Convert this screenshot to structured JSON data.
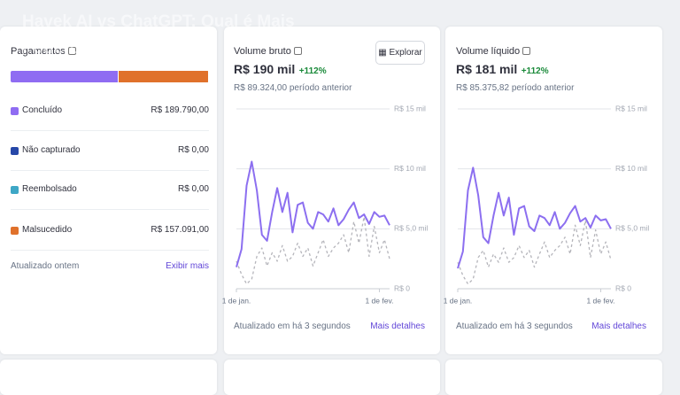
{
  "overlay_title": "Havek AI vs ChatGPT: Qual é Mais Poderoso?",
  "payments": {
    "title": "Pagamentos",
    "labels": [
      "Concluído",
      "Não capturado",
      "Reembolsado",
      "Malsucedido"
    ],
    "colors": [
      "#8f6cf2",
      "#2748a8",
      "#3ea7c6",
      "#e0712b"
    ],
    "values": [
      189790,
      0,
      0,
      157091
    ],
    "value_labels": [
      "R$ 189.790,00",
      "R$ 0,00",
      "R$ 0,00",
      "R$ 157.091,00"
    ],
    "updated": "Atualizado ontem",
    "link": "Exibir mais"
  },
  "chart_data": [
    {
      "type": "line",
      "title": "Volume bruto",
      "total": "R$ 190 mil",
      "change": "+112%",
      "previous": "R$ 89.324,00 período anterior",
      "button": "Explorar",
      "footer": "Atualizado em há 3 segundos",
      "link": "Mais detalhes",
      "categories": [
        "1 de jan.",
        null,
        null,
        null,
        null,
        null,
        null,
        null,
        null,
        null,
        null,
        null,
        null,
        null,
        null,
        null,
        null,
        null,
        null,
        null,
        null,
        null,
        null,
        null,
        null,
        null,
        null,
        null,
        "1 de fev.",
        null,
        null
      ],
      "series": [
        {
          "color": "#8c6ff0",
          "values": [
            1800,
            3300,
            8600,
            10600,
            8200,
            4500,
            4000,
            6400,
            8400,
            6400,
            8000,
            4700,
            7000,
            7200,
            5500,
            5000,
            6400,
            6200,
            5600,
            6700,
            5300,
            5800,
            6600,
            7200,
            5900,
            6200,
            5400,
            6400,
            6000,
            6100,
            5300
          ]
        },
        {
          "color": "#b5b5bb",
          "dashed": true,
          "values": [
            2300,
            1200,
            400,
            800,
            2700,
            3400,
            1900,
            3000,
            2300,
            3600,
            2300,
            2700,
            3800,
            2700,
            3400,
            1900,
            3000,
            4100,
            2700,
            3400,
            3800,
            4500,
            3000,
            5600,
            3800,
            6000,
            2700,
            5200,
            3000,
            4100,
            2500
          ]
        }
      ],
      "ylim": [
        0,
        15000
      ],
      "yticks": [
        {
          "value": 0,
          "label": "R$ 0"
        },
        {
          "value": 5000,
          "label": "R$ 5,0 mil"
        },
        {
          "value": 10000,
          "label": "R$ 10 mil"
        },
        {
          "value": 15000,
          "label": "R$ 15 mil"
        }
      ],
      "grid": true
    },
    {
      "type": "line",
      "title": "Volume líquido",
      "total": "R$ 181 mil",
      "change": "+112%",
      "previous": "R$ 85.375,82 período anterior",
      "footer": "Atualizado em há 3 segundos",
      "link": "Mais detalhes",
      "categories": [
        "1 de jan.",
        null,
        null,
        null,
        null,
        null,
        null,
        null,
        null,
        null,
        null,
        null,
        null,
        null,
        null,
        null,
        null,
        null,
        null,
        null,
        null,
        null,
        null,
        null,
        null,
        null,
        null,
        null,
        "1 de fev.",
        null,
        null
      ],
      "series": [
        {
          "color": "#8c6ff0",
          "values": [
            1700,
            3100,
            8200,
            10100,
            7800,
            4300,
            3800,
            6100,
            8000,
            6100,
            7600,
            4500,
            6700,
            6900,
            5200,
            4800,
            6100,
            5900,
            5300,
            6400,
            5000,
            5500,
            6300,
            6900,
            5600,
            5900,
            5100,
            6100,
            5700,
            5800,
            5000
          ]
        },
        {
          "color": "#b5b5bb",
          "dashed": true,
          "values": [
            2200,
            1100,
            400,
            800,
            2600,
            3200,
            1800,
            2900,
            2200,
            3400,
            2200,
            2600,
            3600,
            2600,
            3200,
            1800,
            2900,
            3900,
            2600,
            3200,
            3600,
            4300,
            2900,
            5300,
            3600,
            5700,
            2600,
            4900,
            2900,
            3900,
            2400
          ]
        }
      ],
      "ylim": [
        0,
        15000
      ],
      "yticks": [
        {
          "value": 0,
          "label": "R$ 0"
        },
        {
          "value": 5000,
          "label": "R$ 5,0 mil"
        },
        {
          "value": 10000,
          "label": "R$ 10 mil"
        },
        {
          "value": 15000,
          "label": "R$ 15 mil"
        }
      ],
      "grid": true
    }
  ]
}
